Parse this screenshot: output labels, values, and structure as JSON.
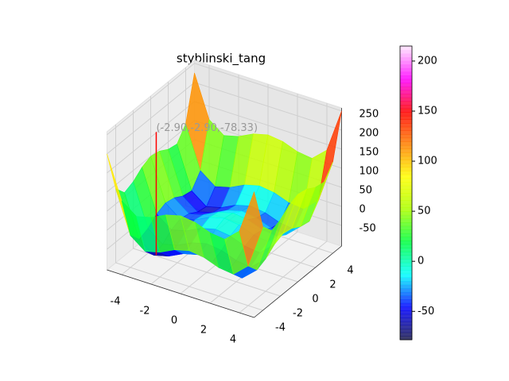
{
  "chart_data": {
    "type": "surface3d",
    "title": "styblinski_tang",
    "annotation": "(-2.90,-2.90,-78.33)",
    "marker": {
      "x": -2.9,
      "y": -2.9,
      "z": -78.33,
      "color": "#ff0000"
    },
    "x": [
      -5,
      -4,
      -3,
      -2,
      -1,
      0,
      1,
      2,
      3,
      4,
      5
    ],
    "y": [
      -5,
      -4,
      -3,
      -2,
      -1,
      0,
      1,
      2,
      3,
      4,
      5
    ],
    "z": [
      [
        200,
        90,
        61,
        71,
        90,
        100,
        95,
        81,
        76,
        110,
        225
      ],
      [
        90,
        -20,
        -49,
        -39,
        -20,
        -10,
        -15,
        -29,
        -34,
        0,
        115
      ],
      [
        61,
        -49,
        -78,
        -68,
        -49,
        -39,
        -44,
        -58,
        -63,
        -29,
        86
      ],
      [
        71,
        -39,
        -68,
        -58,
        -39,
        -29,
        -34,
        -48,
        -53,
        -19,
        96
      ],
      [
        90,
        -20,
        -49,
        -39,
        -20,
        -10,
        -15,
        -29,
        -34,
        0,
        115
      ],
      [
        100,
        -10,
        -39,
        -29,
        -10,
        0,
        -5,
        -19,
        -24,
        10,
        125
      ],
      [
        95,
        -15,
        -44,
        -34,
        -15,
        -5,
        -10,
        -24,
        -29,
        5,
        120
      ],
      [
        81,
        -29,
        -58,
        -48,
        -29,
        -19,
        -24,
        -38,
        -43,
        -9,
        106
      ],
      [
        76,
        -34,
        -63,
        -53,
        -34,
        -24,
        -29,
        -43,
        -48,
        -14,
        101
      ],
      [
        110,
        0,
        -29,
        -19,
        0,
        10,
        5,
        -9,
        -14,
        20,
        135
      ],
      [
        225,
        115,
        86,
        96,
        115,
        125,
        120,
        106,
        101,
        135,
        250
      ]
    ],
    "xlim": [
      -5,
      5
    ],
    "ylim": [
      -5,
      5
    ],
    "zlim": [
      -104,
      258
    ],
    "xticks": [
      -4,
      -2,
      0,
      2,
      4
    ],
    "yticks": [
      -4,
      -2,
      0,
      2,
      4
    ],
    "zticks": [
      -50,
      0,
      50,
      100,
      150,
      200,
      250
    ],
    "clim": [
      -78.33,
      215
    ],
    "cticks": [
      -50,
      0,
      50,
      100,
      150,
      200
    ],
    "colormap": [
      "#1a1a4a",
      "#0000ff",
      "#00ffff",
      "#00ff40",
      "#aaff00",
      "#ffff00",
      "#ff8000",
      "#ff0000",
      "#ff00ff",
      "#ffe8ff"
    ],
    "grid": true
  }
}
